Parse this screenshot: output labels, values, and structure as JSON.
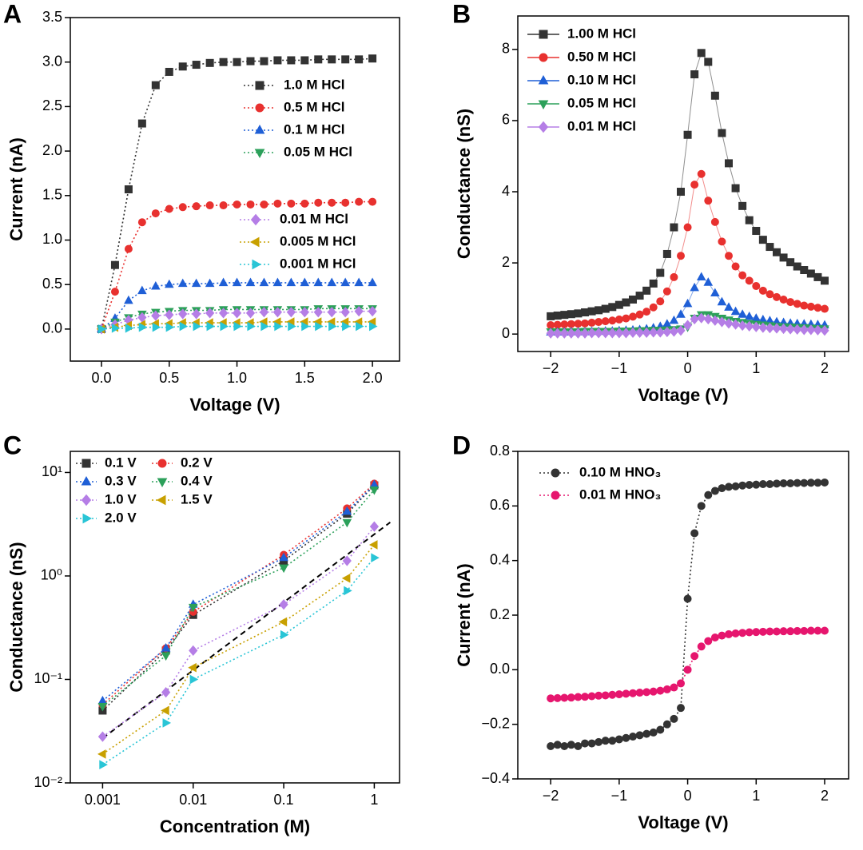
{
  "chart_data": [
    {
      "type": "line",
      "panel_label": "A",
      "xlabel": "Voltage (V)",
      "ylabel": "Current (nA)",
      "line_style": "dotted",
      "xlim": [
        -0.23,
        2.2
      ],
      "ylim": [
        -0.36,
        3.5
      ],
      "xticks": [
        {
          "value": 0,
          "label": "0.0"
        },
        {
          "value": 0.5,
          "label": "0.5"
        },
        {
          "value": 1,
          "label": "1.0"
        },
        {
          "value": 1.5,
          "label": "1.5"
        },
        {
          "value": 2,
          "label": "2.0"
        }
      ],
      "yticks": [
        {
          "value": 0,
          "label": "0.0"
        },
        {
          "value": 0.5,
          "label": "0.5"
        },
        {
          "value": 1,
          "label": "1.0"
        },
        {
          "value": 1.5,
          "label": "1.5"
        },
        {
          "value": 2,
          "label": "2.0"
        },
        {
          "value": 2.5,
          "label": "2.5"
        },
        {
          "value": 3,
          "label": "3.0"
        },
        3.5
      ],
      "x": [
        0,
        0.1,
        0.2,
        0.3,
        0.4,
        0.5,
        0.6,
        0.7,
        0.8,
        0.9,
        1.0,
        1.1,
        1.2,
        1.3,
        1.4,
        1.5,
        1.6,
        1.7,
        1.8,
        1.9,
        2.0
      ],
      "series": [
        {
          "name": "1.0 M HCl",
          "color": "#333333",
          "marker": "square",
          "values": [
            0,
            0.72,
            1.57,
            2.31,
            2.74,
            2.89,
            2.95,
            2.97,
            2.99,
            3.0,
            3.0,
            3.01,
            3.01,
            3.02,
            3.02,
            3.02,
            3.03,
            3.03,
            3.03,
            3.03,
            3.04
          ]
        },
        {
          "name": "0.5 M HCl",
          "color": "#e8312f",
          "marker": "circle",
          "values": [
            0,
            0.42,
            0.9,
            1.2,
            1.3,
            1.35,
            1.37,
            1.38,
            1.39,
            1.39,
            1.4,
            1.4,
            1.4,
            1.41,
            1.41,
            1.41,
            1.42,
            1.42,
            1.42,
            1.43,
            1.43
          ]
        },
        {
          "name": "0.1 M HCl",
          "color": "#1f5fd6",
          "marker": "triangle-up",
          "values": [
            0,
            0.12,
            0.32,
            0.43,
            0.48,
            0.5,
            0.51,
            0.51,
            0.51,
            0.52,
            0.52,
            0.52,
            0.52,
            0.52,
            0.52,
            0.52,
            0.52,
            0.52,
            0.52,
            0.52,
            0.52
          ]
        },
        {
          "name": "0.05 M HCl",
          "color": "#2ca05a",
          "marker": "triangle-down",
          "values": [
            0,
            0.08,
            0.13,
            0.17,
            0.19,
            0.2,
            0.21,
            0.21,
            0.21,
            0.22,
            0.22,
            0.22,
            0.22,
            0.22,
            0.22,
            0.22,
            0.23,
            0.23,
            0.23,
            0.23,
            0.23
          ]
        },
        {
          "name": "0.01 M HCl",
          "color": "#b57ee6",
          "marker": "diamond",
          "values": [
            0,
            0.05,
            0.1,
            0.13,
            0.15,
            0.16,
            0.17,
            0.17,
            0.18,
            0.18,
            0.18,
            0.18,
            0.19,
            0.19,
            0.19,
            0.19,
            0.19,
            0.19,
            0.19,
            0.2,
            0.2
          ]
        },
        {
          "name": "0.005 M HCl",
          "color": "#c8a000",
          "marker": "triangle-left",
          "values": [
            0,
            0.02,
            0.04,
            0.05,
            0.06,
            0.06,
            0.07,
            0.07,
            0.07,
            0.07,
            0.07,
            0.07,
            0.08,
            0.08,
            0.08,
            0.08,
            0.08,
            0.08,
            0.08,
            0.08,
            0.08
          ]
        },
        {
          "name": "0.001 M HCl",
          "color": "#29c5d6",
          "marker": "triangle-right",
          "values": [
            0,
            0.01,
            0.01,
            0.02,
            0.02,
            0.02,
            0.03,
            0.03,
            0.03,
            0.03,
            0.03,
            0.03,
            0.03,
            0.03,
            0.03,
            0.03,
            0.03,
            0.03,
            0.03,
            0.03,
            0.03
          ]
        }
      ]
    },
    {
      "type": "line",
      "panel_label": "B",
      "xlabel": "Voltage (V)",
      "ylabel": "Conductance (nS)",
      "line_style": "solid",
      "xlim": [
        -2.48,
        2.35
      ],
      "ylim": [
        -0.49,
        8.94
      ],
      "xticks": [
        {
          "value": -2,
          "label": "−2"
        },
        {
          "value": -1,
          "label": "−1"
        },
        0,
        1,
        2
      ],
      "yticks": [
        0,
        2,
        4,
        6,
        8
      ],
      "x": [
        -2.0,
        -1.9,
        -1.8,
        -1.7,
        -1.6,
        -1.5,
        -1.4,
        -1.3,
        -1.2,
        -1.1,
        -1.0,
        -0.9,
        -0.8,
        -0.7,
        -0.6,
        -0.5,
        -0.4,
        -0.3,
        -0.2,
        -0.1,
        0.0,
        0.1,
        0.2,
        0.3,
        0.4,
        0.5,
        0.6,
        0.7,
        0.8,
        0.9,
        1.0,
        1.1,
        1.2,
        1.3,
        1.4,
        1.5,
        1.6,
        1.7,
        1.8,
        1.9,
        2.0
      ],
      "series": [
        {
          "name": "1.00 M HCl",
          "color": "#333333",
          "marker": "square",
          "values": [
            0.5,
            0.52,
            0.54,
            0.56,
            0.58,
            0.61,
            0.64,
            0.67,
            0.71,
            0.76,
            0.82,
            0.89,
            0.97,
            1.08,
            1.22,
            1.42,
            1.72,
            2.25,
            3.0,
            4.0,
            5.6,
            7.3,
            7.9,
            7.65,
            6.7,
            5.65,
            4.8,
            4.1,
            3.6,
            3.2,
            2.9,
            2.65,
            2.45,
            2.3,
            2.15,
            2.02,
            1.9,
            1.8,
            1.7,
            1.6,
            1.5
          ]
        },
        {
          "name": "0.50 M HCl",
          "color": "#e8312f",
          "marker": "circle",
          "values": [
            0.25,
            0.26,
            0.27,
            0.28,
            0.29,
            0.3,
            0.32,
            0.34,
            0.36,
            0.38,
            0.41,
            0.44,
            0.49,
            0.55,
            0.63,
            0.75,
            0.92,
            1.2,
            1.6,
            2.2,
            3.0,
            4.2,
            4.5,
            3.75,
            3.15,
            2.6,
            2.2,
            1.9,
            1.65,
            1.5,
            1.35,
            1.22,
            1.12,
            1.04,
            0.97,
            0.9,
            0.85,
            0.8,
            0.77,
            0.74,
            0.71
          ]
        },
        {
          "name": "0.10 M HCl",
          "color": "#1f5fd6",
          "marker": "triangle-up",
          "values": [
            0.05,
            0.05,
            0.05,
            0.06,
            0.06,
            0.06,
            0.07,
            0.07,
            0.08,
            0.08,
            0.09,
            0.1,
            0.11,
            0.12,
            0.14,
            0.17,
            0.21,
            0.28,
            0.38,
            0.55,
            0.85,
            1.3,
            1.6,
            1.45,
            1.15,
            0.9,
            0.75,
            0.63,
            0.55,
            0.49,
            0.44,
            0.4,
            0.37,
            0.34,
            0.32,
            0.3,
            0.29,
            0.28,
            0.27,
            0.26,
            0.25
          ]
        },
        {
          "name": "0.05 M HCl",
          "color": "#2ca05a",
          "marker": "triangle-down",
          "values": [
            0.07,
            0.07,
            0.07,
            0.07,
            0.07,
            0.08,
            0.08,
            0.08,
            0.08,
            0.08,
            0.09,
            0.09,
            0.09,
            0.1,
            0.1,
            0.11,
            0.11,
            0.12,
            0.13,
            0.15,
            0.2,
            0.45,
            0.55,
            0.55,
            0.5,
            0.45,
            0.4,
            0.36,
            0.33,
            0.3,
            0.28,
            0.26,
            0.24,
            0.22,
            0.21,
            0.2,
            0.19,
            0.18,
            0.17,
            0.16,
            0.15
          ]
        },
        {
          "name": "0.01 M HCl",
          "color": "#b57ee6",
          "marker": "diamond",
          "values": [
            0.02,
            0.02,
            0.02,
            0.02,
            0.02,
            0.02,
            0.03,
            0.03,
            0.03,
            0.03,
            0.03,
            0.03,
            0.04,
            0.04,
            0.04,
            0.05,
            0.05,
            0.06,
            0.07,
            0.1,
            0.25,
            0.42,
            0.45,
            0.42,
            0.38,
            0.34,
            0.3,
            0.27,
            0.24,
            0.22,
            0.2,
            0.18,
            0.17,
            0.16,
            0.15,
            0.14,
            0.13,
            0.12,
            0.12,
            0.11,
            0.1
          ]
        }
      ]
    },
    {
      "type": "line",
      "panel_label": "C",
      "xlabel": "Concentration (M)",
      "ylabel": "Conductance (nS)",
      "line_style": "dotted",
      "xscale": "log",
      "yscale": "log",
      "xlim": [
        0.00044,
        1.9
      ],
      "ylim": [
        0.01,
        16
      ],
      "xticks": [
        0.001,
        0.01,
        0.1,
        1
      ],
      "yticks": [
        {
          "value": 0.01,
          "label": "10⁻²"
        },
        {
          "value": 0.1,
          "label": "10⁻¹"
        },
        {
          "value": 1,
          "label": "10⁰"
        },
        {
          "value": 10,
          "label": "10¹"
        }
      ],
      "x": [
        0.001,
        0.005,
        0.01,
        0.1,
        0.5,
        1
      ],
      "series": [
        {
          "name": "0.1 V",
          "color": "#333333",
          "marker": "square",
          "values": [
            0.05,
            0.19,
            0.42,
            1.4,
            4.0,
            7.5
          ]
        },
        {
          "name": "0.2 V",
          "color": "#e8312f",
          "marker": "circle",
          "values": [
            0.057,
            0.2,
            0.45,
            1.6,
            4.5,
            7.8
          ]
        },
        {
          "name": "0.3 V",
          "color": "#1f5fd6",
          "marker": "triangle-up",
          "values": [
            0.062,
            0.2,
            0.53,
            1.5,
            4.2,
            7.6
          ]
        },
        {
          "name": "0.4 V",
          "color": "#2ca05a",
          "marker": "triangle-down",
          "values": [
            0.055,
            0.17,
            0.5,
            1.2,
            3.3,
            6.8
          ]
        },
        {
          "name": "1.0 V",
          "color": "#b57ee6",
          "marker": "diamond",
          "values": [
            0.028,
            0.075,
            0.19,
            0.53,
            1.4,
            3.0
          ]
        },
        {
          "name": "1.5 V",
          "color": "#c8a000",
          "marker": "triangle-left",
          "values": [
            0.019,
            0.05,
            0.13,
            0.36,
            0.95,
            2.0
          ]
        },
        {
          "name": "2.0 V",
          "color": "#29c5d6",
          "marker": "triangle-right",
          "values": [
            0.015,
            0.038,
            0.1,
            0.27,
            0.72,
            1.5
          ]
        }
      ],
      "fit_line": {
        "x": [
          0.001,
          1.5
        ],
        "values": [
          0.027,
          3.3
        ],
        "color": "#000000"
      }
    },
    {
      "type": "line",
      "panel_label": "D",
      "xlabel": "Voltage (V)",
      "ylabel": "Current (nA)",
      "line_style": "dotted",
      "xlim": [
        -2.48,
        2.35
      ],
      "ylim": [
        -0.4,
        0.8
      ],
      "xticks": [
        {
          "value": -2,
          "label": "−2"
        },
        {
          "value": -1,
          "label": "−1"
        },
        0,
        1,
        2
      ],
      "yticks": [
        {
          "value": -0.4,
          "label": "−0.4"
        },
        {
          "value": -0.2,
          "label": "−0.2"
        },
        {
          "value": 0,
          "label": "0.0"
        },
        0.2,
        0.4,
        0.6,
        0.8
      ],
      "x": [
        -2.0,
        -1.9,
        -1.8,
        -1.7,
        -1.6,
        -1.5,
        -1.4,
        -1.3,
        -1.2,
        -1.1,
        -1.0,
        -0.9,
        -0.8,
        -0.7,
        -0.6,
        -0.5,
        -0.4,
        -0.3,
        -0.2,
        -0.1,
        0.0,
        0.1,
        0.2,
        0.3,
        0.4,
        0.5,
        0.6,
        0.7,
        0.8,
        0.9,
        1.0,
        1.1,
        1.2,
        1.3,
        1.4,
        1.5,
        1.6,
        1.7,
        1.8,
        1.9,
        2.0
      ],
      "series": [
        {
          "name": "0.10 M HNO₃",
          "color": "#333333",
          "marker": "circle",
          "values": [
            -0.28,
            -0.275,
            -0.28,
            -0.275,
            -0.28,
            -0.27,
            -0.27,
            -0.265,
            -0.26,
            -0.26,
            -0.255,
            -0.25,
            -0.245,
            -0.24,
            -0.235,
            -0.23,
            -0.22,
            -0.2,
            -0.18,
            -0.14,
            0.26,
            0.5,
            0.6,
            0.64,
            0.655,
            0.665,
            0.67,
            0.672,
            0.675,
            0.677,
            0.678,
            0.68,
            0.68,
            0.682,
            0.683,
            0.683,
            0.684,
            0.684,
            0.685,
            0.685,
            0.686
          ]
        },
        {
          "name": "0.01 M HNO₃",
          "color": "#e6166e",
          "marker": "circle",
          "values": [
            -0.105,
            -0.104,
            -0.103,
            -0.102,
            -0.1,
            -0.099,
            -0.097,
            -0.095,
            -0.094,
            -0.092,
            -0.09,
            -0.088,
            -0.086,
            -0.084,
            -0.082,
            -0.08,
            -0.077,
            -0.072,
            -0.065,
            -0.05,
            0.0,
            0.05,
            0.085,
            0.105,
            0.118,
            0.125,
            0.13,
            0.133,
            0.135,
            0.137,
            0.138,
            0.139,
            0.14,
            0.14,
            0.141,
            0.141,
            0.142,
            0.142,
            0.143,
            0.143,
            0.143
          ]
        }
      ]
    }
  ]
}
